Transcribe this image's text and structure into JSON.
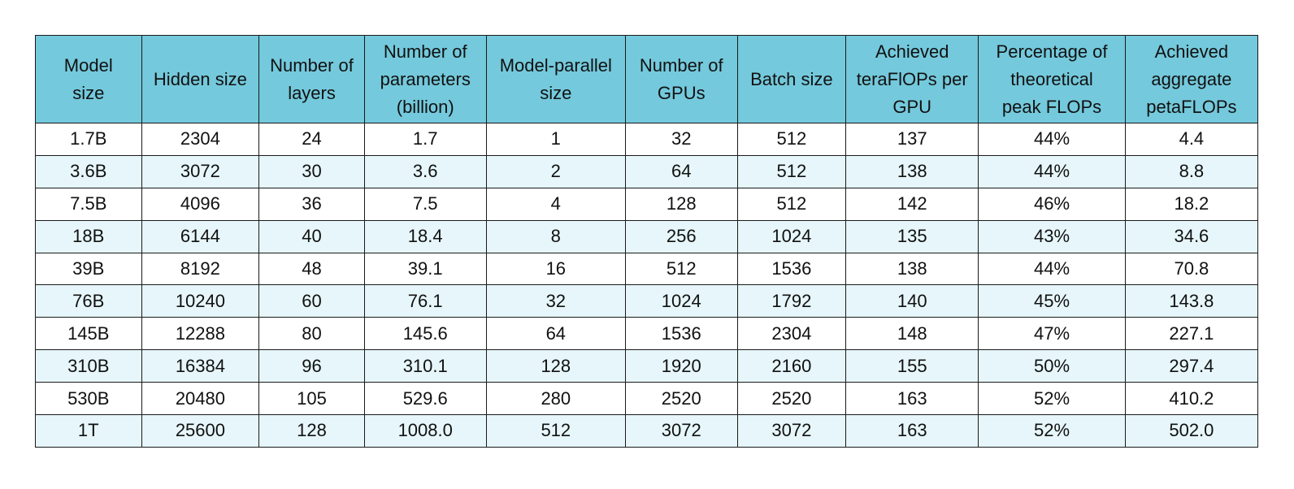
{
  "table": {
    "headers": [
      "Model\nsize",
      "Hidden size",
      "Number of\nlayers",
      "Number of\nparameters\n(billion)",
      "Model-parallel\nsize",
      "Number of\nGPUs",
      "Batch size",
      "Achieved\nteraFlOPs per\nGPU",
      "Percentage of\ntheoretical\npeak FLOPs",
      "Achieved\naggregate\npetaFLOPs"
    ],
    "rows": [
      [
        "1.7B",
        "2304",
        "24",
        "1.7",
        "1",
        "32",
        "512",
        "137",
        "44%",
        "4.4"
      ],
      [
        "3.6B",
        "3072",
        "30",
        "3.6",
        "2",
        "64",
        "512",
        "138",
        "44%",
        "8.8"
      ],
      [
        "7.5B",
        "4096",
        "36",
        "7.5",
        "4",
        "128",
        "512",
        "142",
        "46%",
        "18.2"
      ],
      [
        "18B",
        "6144",
        "40",
        "18.4",
        "8",
        "256",
        "1024",
        "135",
        "43%",
        "34.6"
      ],
      [
        "39B",
        "8192",
        "48",
        "39.1",
        "16",
        "512",
        "1536",
        "138",
        "44%",
        "70.8"
      ],
      [
        "76B",
        "10240",
        "60",
        "76.1",
        "32",
        "1024",
        "1792",
        "140",
        "45%",
        "143.8"
      ],
      [
        "145B",
        "12288",
        "80",
        "145.6",
        "64",
        "1536",
        "2304",
        "148",
        "47%",
        "227.1"
      ],
      [
        "310B",
        "16384",
        "96",
        "310.1",
        "128",
        "1920",
        "2160",
        "155",
        "50%",
        "297.4"
      ],
      [
        "530B",
        "20480",
        "105",
        "529.6",
        "280",
        "2520",
        "2520",
        "163",
        "52%",
        "410.2"
      ],
      [
        "1T",
        "25600",
        "128",
        "1008.0",
        "512",
        "3072",
        "3072",
        "163",
        "52%",
        "502.0"
      ]
    ]
  },
  "colors": {
    "header_bg": "#74c9dc",
    "row_alt_bg": "#e6f6fa",
    "border": "#1a1a1a"
  }
}
